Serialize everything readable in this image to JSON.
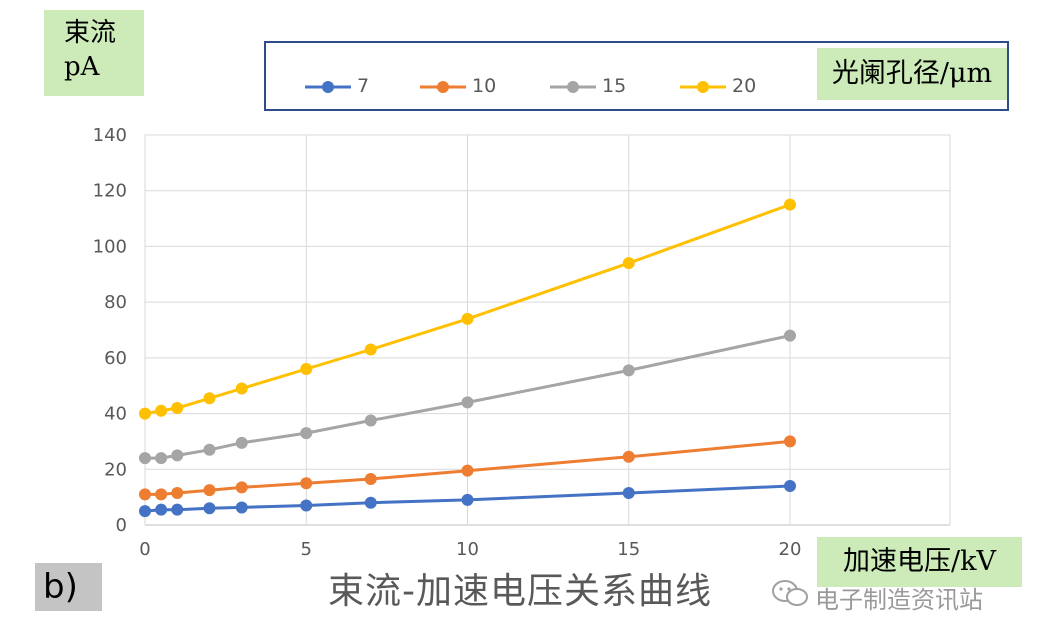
{
  "chart_data": {
    "type": "line",
    "title": "束流-加速电压关系曲线",
    "ylabel": "束流\npA",
    "ylabel_lines": [
      "束流",
      "pA"
    ],
    "xlabel": "加速电压/kV",
    "legend_title": "光阑孔径/μm",
    "legend_position": "top",
    "panel_label": "b)",
    "xlim": [
      0,
      20
    ],
    "ylim": [
      0,
      140
    ],
    "x_ticks": [
      0,
      5,
      10,
      15,
      20
    ],
    "y_ticks": [
      0,
      20,
      40,
      60,
      80,
      100,
      120,
      140
    ],
    "grid": true,
    "x": [
      0,
      0.5,
      1,
      2,
      3,
      5,
      7,
      10,
      15,
      20
    ],
    "series": [
      {
        "name": "7",
        "color": "#4472c4",
        "values": [
          5,
          5.5,
          5.5,
          6,
          6.3,
          7,
          8,
          9,
          11.5,
          14
        ]
      },
      {
        "name": "10",
        "color": "#ed7d31",
        "values": [
          11,
          11,
          11.5,
          12.5,
          13.5,
          15,
          16.5,
          19.5,
          24.5,
          30
        ]
      },
      {
        "name": "15",
        "color": "#a5a5a5",
        "values": [
          24,
          24,
          25,
          27,
          29.5,
          33,
          37.5,
          44,
          55.5,
          68
        ]
      },
      {
        "name": "20",
        "color": "#ffc000",
        "values": [
          40,
          41,
          42,
          45.5,
          49,
          56,
          63,
          74,
          94,
          115
        ]
      }
    ]
  },
  "watermark": "电子制造资讯站",
  "watermark_icon": "wechat-icon"
}
